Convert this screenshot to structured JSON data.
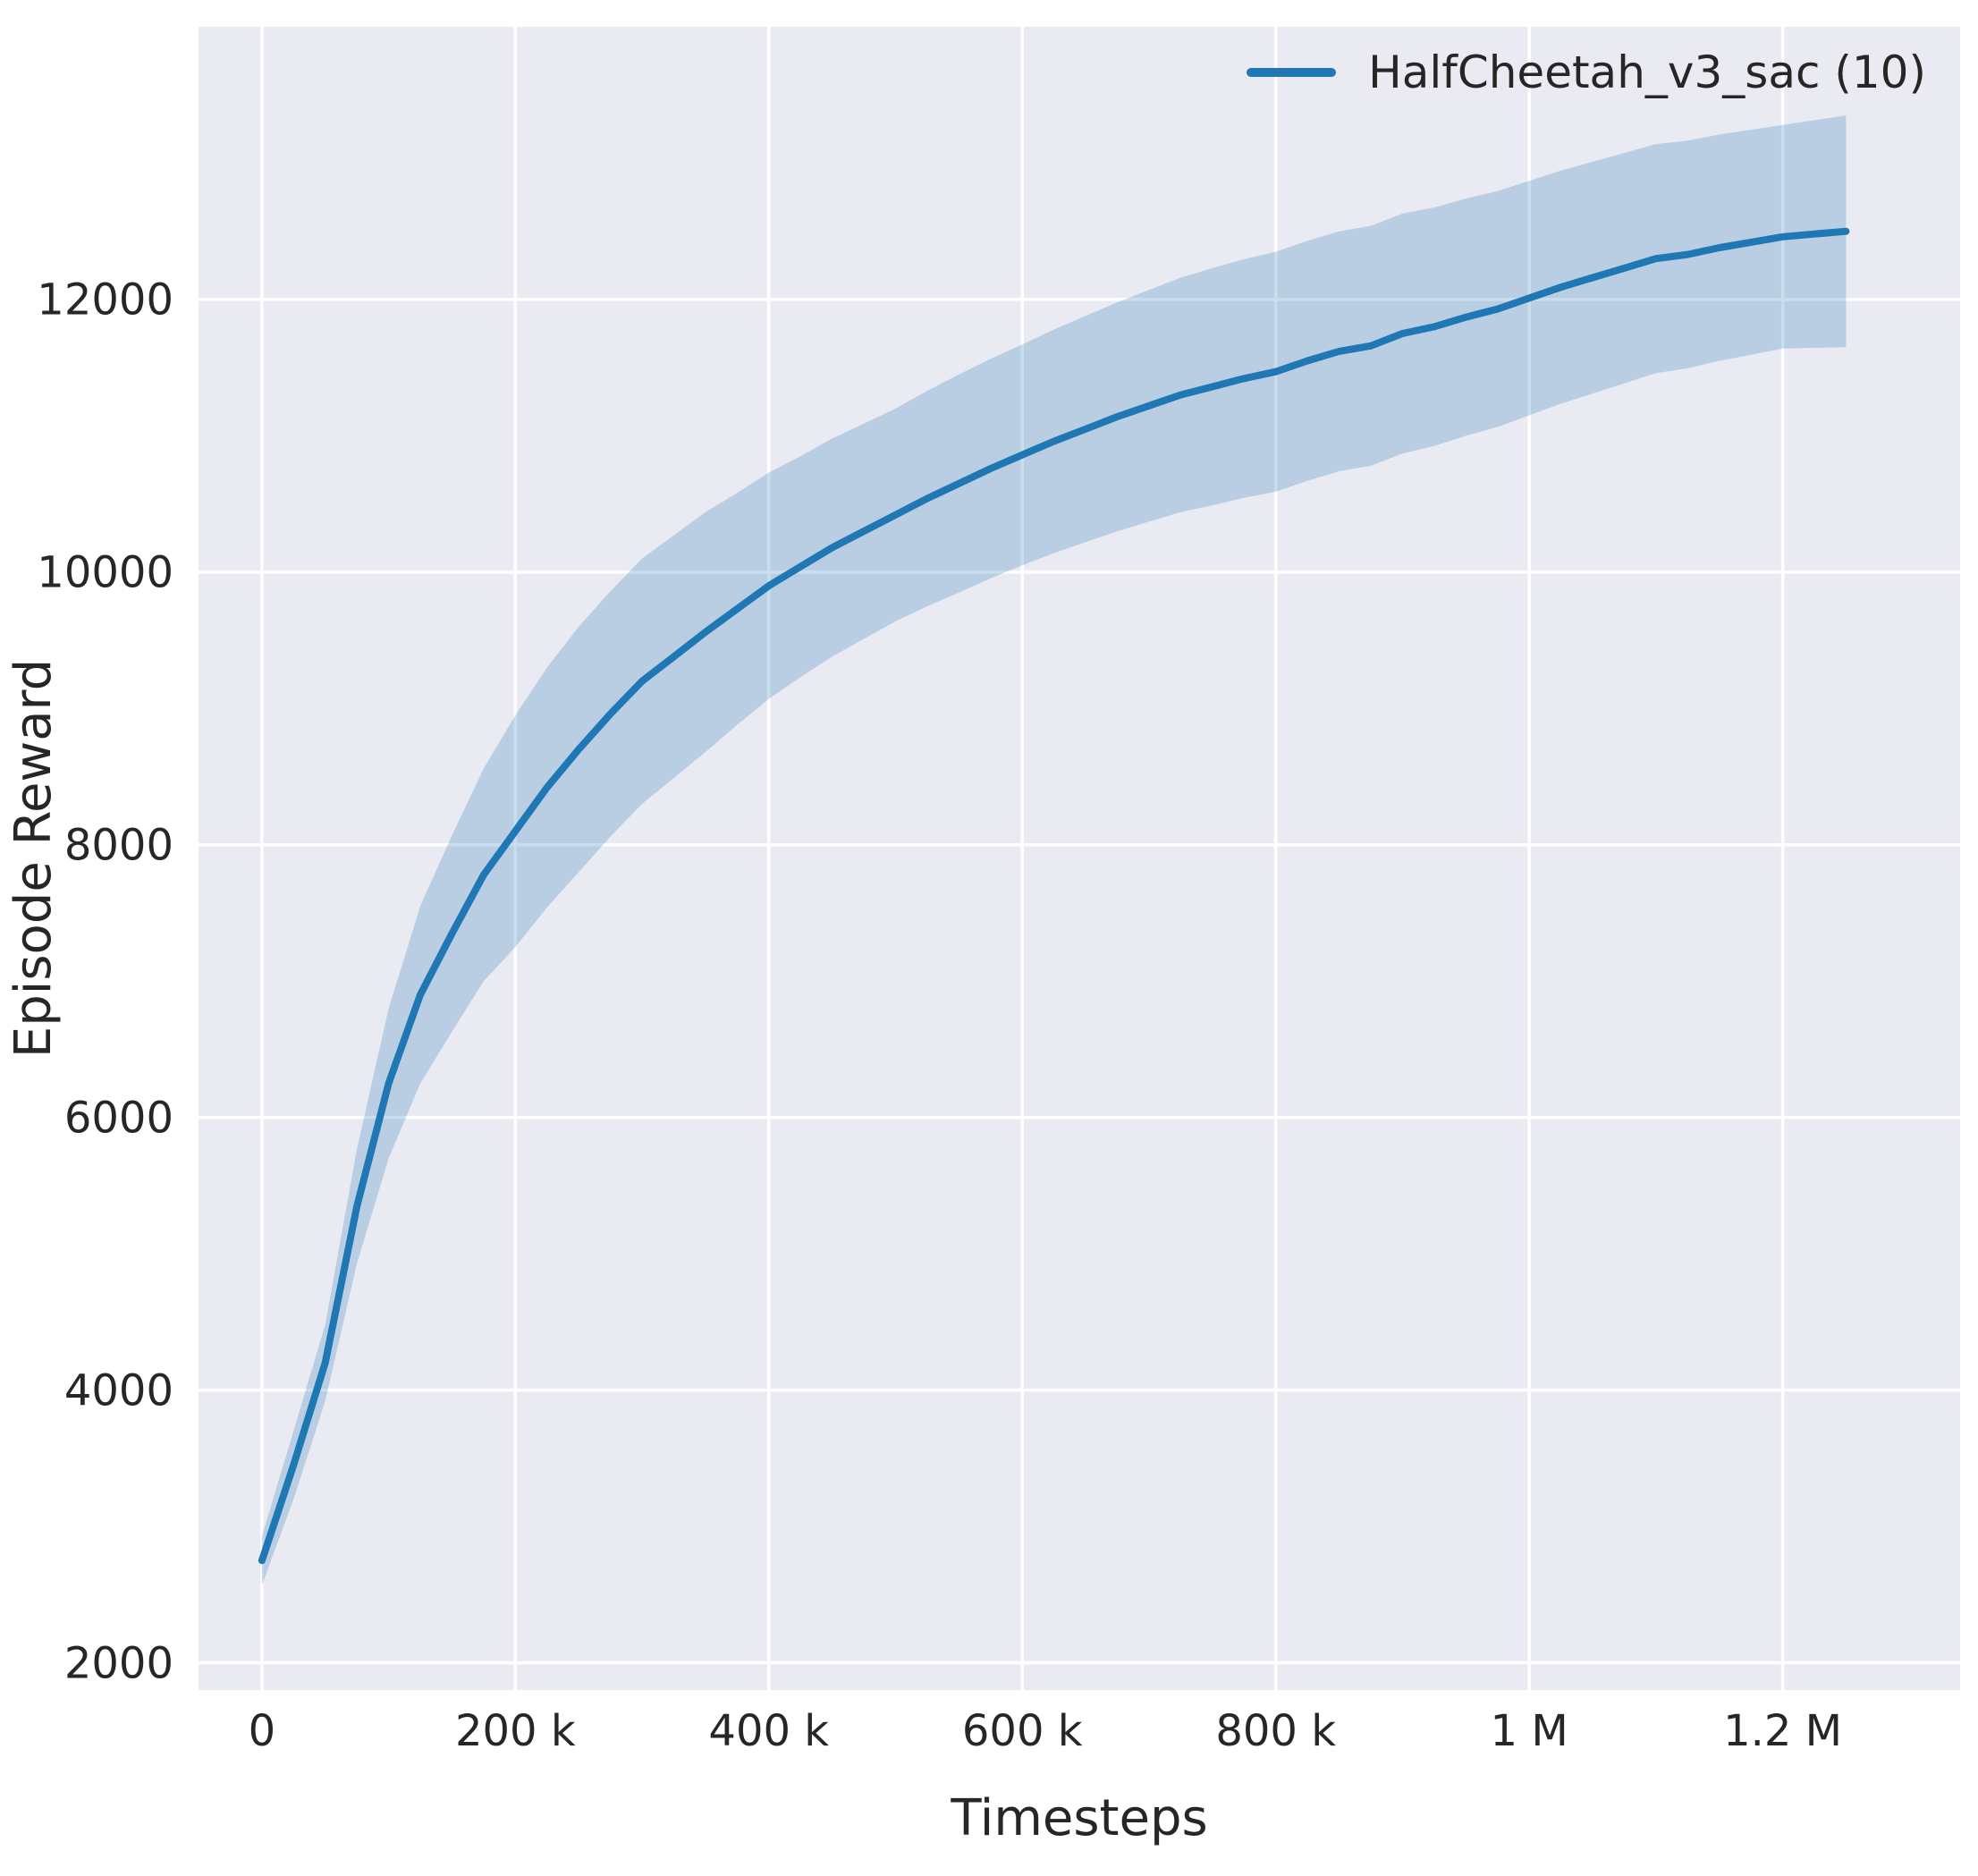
{
  "chart_data": {
    "type": "line",
    "title": "",
    "xlabel": "Timesteps",
    "ylabel": "Episode Reward",
    "legend_position": "upper right",
    "grid": true,
    "plot_background": "#eaeaf2",
    "grid_color": "#ffffff",
    "text_color": "#262626",
    "band_opacity": 0.24,
    "xlim": [
      -50000,
      1340000
    ],
    "ylim": [
      1800,
      14000
    ],
    "x_ticks": {
      "values": [
        0,
        200000,
        400000,
        600000,
        800000,
        1000000,
        1200000
      ],
      "labels": [
        "0",
        "200 k",
        "400 k",
        "600 k",
        "800 k",
        "1 M",
        "1.2 M"
      ]
    },
    "y_ticks": {
      "values": [
        2000,
        4000,
        6000,
        8000,
        10000,
        12000
      ],
      "labels": [
        "2000",
        "4000",
        "6000",
        "8000",
        "10000",
        "12000"
      ]
    },
    "x": [
      0,
      25000,
      50000,
      75000,
      100000,
      125000,
      150000,
      175000,
      200000,
      225000,
      250000,
      275000,
      300000,
      325000,
      350000,
      375000,
      400000,
      425000,
      450000,
      475000,
      500000,
      525000,
      550000,
      575000,
      600000,
      625000,
      650000,
      675000,
      700000,
      725000,
      750000,
      775000,
      800000,
      825000,
      850000,
      875000,
      900000,
      925000,
      950000,
      975000,
      1000000,
      1025000,
      1050000,
      1075000,
      1100000,
      1125000,
      1150000,
      1175000,
      1200000,
      1225000,
      1250000
    ],
    "series": [
      {
        "name": "HalfCheetah_v3_sac (10)",
        "color": "#1f77b4",
        "mean": [
          2750,
          3450,
          4200,
          5350,
          6250,
          6900,
          7350,
          7780,
          8100,
          8420,
          8700,
          8960,
          9200,
          9380,
          9560,
          9730,
          9900,
          10040,
          10180,
          10300,
          10420,
          10540,
          10650,
          10760,
          10860,
          10960,
          11050,
          11140,
          11220,
          11300,
          11360,
          11420,
          11470,
          11550,
          11620,
          11660,
          11750,
          11800,
          11870,
          11930,
          12010,
          12090,
          12160,
          12230,
          12300,
          12330,
          12380,
          12420,
          12460,
          12480,
          12500
        ],
        "band_lower": [
          2570,
          3200,
          3920,
          4930,
          5700,
          6250,
          6630,
          7000,
          7250,
          7540,
          7800,
          8060,
          8300,
          8490,
          8680,
          8880,
          9070,
          9230,
          9380,
          9510,
          9640,
          9750,
          9850,
          9955,
          10050,
          10140,
          10220,
          10300,
          10370,
          10440,
          10490,
          10545,
          10590,
          10670,
          10740,
          10780,
          10870,
          10925,
          11000,
          11065,
          11150,
          11235,
          11310,
          11385,
          11460,
          11495,
          11550,
          11595,
          11640,
          11645,
          11650
        ],
        "band_upper": [
          2930,
          3700,
          4480,
          5770,
          6800,
          7550,
          8070,
          8560,
          8950,
          9300,
          9600,
          9860,
          10100,
          10270,
          10440,
          10580,
          10730,
          10850,
          10980,
          11090,
          11200,
          11330,
          11450,
          11565,
          11670,
          11780,
          11880,
          11980,
          12070,
          12160,
          12230,
          12295,
          12350,
          12430,
          12500,
          12540,
          12630,
          12675,
          12740,
          12795,
          12870,
          12945,
          13010,
          13075,
          13140,
          13165,
          13210,
          13245,
          13280,
          13315,
          13350
        ]
      }
    ]
  }
}
